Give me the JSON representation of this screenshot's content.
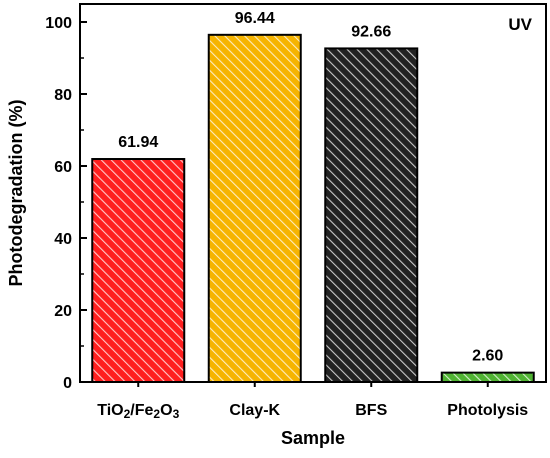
{
  "chart_data": {
    "type": "bar",
    "title": "",
    "annotation": "UV",
    "xlabel": "Sample",
    "ylabel": "Photodegradation (%)",
    "ylim": [
      0,
      105
    ],
    "yticks": [
      0,
      20,
      40,
      60,
      80,
      100
    ],
    "categories": [
      "TiO2/Fe2O3",
      "Clay-K",
      "BFS",
      "Photolysis"
    ],
    "values": [
      61.94,
      96.44,
      92.66,
      2.6
    ],
    "value_labels": [
      "61.94",
      "96.44",
      "92.66",
      "2.60"
    ],
    "colors": [
      "#ff1f1f",
      "#f6b400",
      "#222222",
      "#4fb332"
    ],
    "fill_pattern": "diagonal-hatch",
    "grid": false,
    "legend": "none"
  }
}
